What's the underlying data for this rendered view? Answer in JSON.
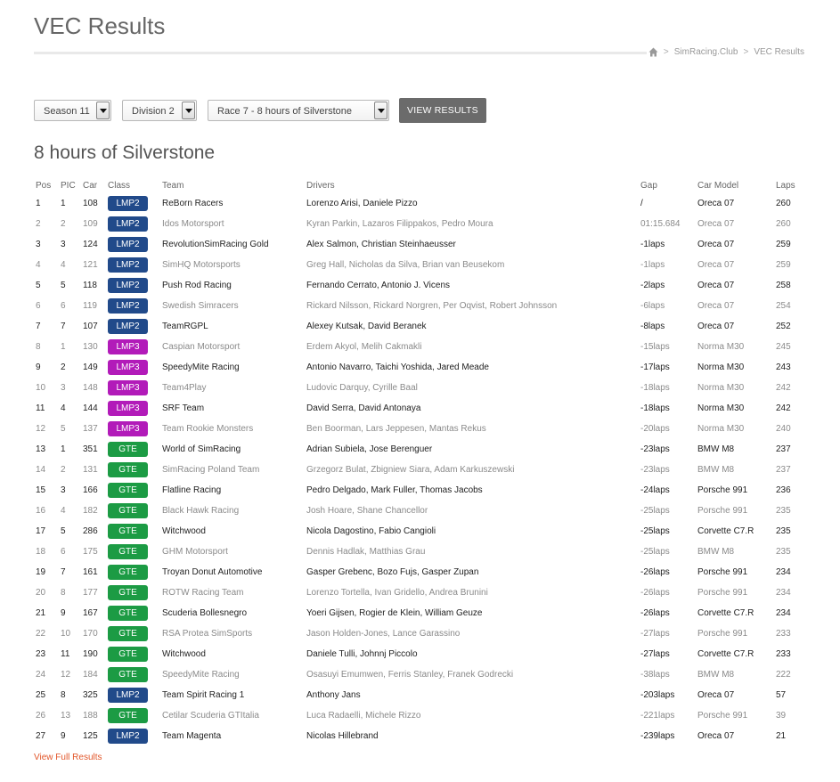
{
  "header": {
    "title": "VEC Results"
  },
  "breadcrumb": {
    "sep": ">",
    "items": [
      "SimRacing.Club",
      "VEC Results"
    ]
  },
  "filters": {
    "season": "Season 11",
    "division": "Division 2",
    "race": "Race 7 - 8 hours of Silverstone",
    "button": "VIEW RESULTS"
  },
  "race_title": "8 hours of Silverstone",
  "columns": [
    "Pos",
    "PIC",
    "Car",
    "Class",
    "Team",
    "Drivers",
    "Gap",
    "Car Model",
    "Laps"
  ],
  "colors": {
    "lmp2": "#214a8a",
    "lmp3": "#b21bb9",
    "gte": "#1c9b44",
    "link": "#e2562a"
  },
  "rows": [
    {
      "pos": "1",
      "pic": "1",
      "car": "108",
      "cls": "LMP2",
      "team": "ReBorn Racers",
      "drivers": "Lorenzo Arisi, Daniele Pizzo",
      "gap": "/",
      "model": "Oreca 07",
      "laps": "260"
    },
    {
      "pos": "2",
      "pic": "2",
      "car": "109",
      "cls": "LMP2",
      "team": "Idos Motorsport",
      "drivers": "Kyran Parkin, Lazaros Filippakos, Pedro Moura",
      "gap": "01:15.684",
      "model": "Oreca 07",
      "laps": "260"
    },
    {
      "pos": "3",
      "pic": "3",
      "car": "124",
      "cls": "LMP2",
      "team": "RevolutionSimRacing Gold",
      "drivers": "Alex Salmon, Christian Steinhaeusser",
      "gap": "-1laps",
      "model": "Oreca 07",
      "laps": "259"
    },
    {
      "pos": "4",
      "pic": "4",
      "car": "121",
      "cls": "LMP2",
      "team": "SimHQ Motorsports",
      "drivers": "Greg Hall, Nicholas da Silva, Brian van Beusekom",
      "gap": "-1laps",
      "model": "Oreca 07",
      "laps": "259"
    },
    {
      "pos": "5",
      "pic": "5",
      "car": "118",
      "cls": "LMP2",
      "team": "Push Rod Racing",
      "drivers": "Fernando Cerrato, Antonio J. Vicens",
      "gap": "-2laps",
      "model": "Oreca 07",
      "laps": "258"
    },
    {
      "pos": "6",
      "pic": "6",
      "car": "119",
      "cls": "LMP2",
      "team": "Swedish Simracers",
      "drivers": "Rickard Nilsson, Rickard Norgren, Per Oqvist, Robert Johnsson",
      "gap": "-6laps",
      "model": "Oreca 07",
      "laps": "254"
    },
    {
      "pos": "7",
      "pic": "7",
      "car": "107",
      "cls": "LMP2",
      "team": "TeamRGPL",
      "drivers": "Alexey Kutsak, David Beranek",
      "gap": "-8laps",
      "model": "Oreca 07",
      "laps": "252"
    },
    {
      "pos": "8",
      "pic": "1",
      "car": "130",
      "cls": "LMP3",
      "team": "Caspian Motorsport",
      "drivers": "Erdem Akyol, Melih Cakmakli",
      "gap": "-15laps",
      "model": "Norma M30",
      "laps": "245"
    },
    {
      "pos": "9",
      "pic": "2",
      "car": "149",
      "cls": "LMP3",
      "team": "SpeedyMite Racing",
      "drivers": "Antonio Navarro, Taichi Yoshida, Jared Meade",
      "gap": "-17laps",
      "model": "Norma M30",
      "laps": "243"
    },
    {
      "pos": "10",
      "pic": "3",
      "car": "148",
      "cls": "LMP3",
      "team": "Team4Play",
      "drivers": "Ludovic Darquy, Cyrille Baal",
      "gap": "-18laps",
      "model": "Norma M30",
      "laps": "242"
    },
    {
      "pos": "11",
      "pic": "4",
      "car": "144",
      "cls": "LMP3",
      "team": "SRF Team",
      "drivers": "David Serra, David Antonaya",
      "gap": "-18laps",
      "model": "Norma M30",
      "laps": "242"
    },
    {
      "pos": "12",
      "pic": "5",
      "car": "137",
      "cls": "LMP3",
      "team": "Team Rookie Monsters",
      "drivers": "Ben Boorman, Lars Jeppesen, Mantas Rekus",
      "gap": "-20laps",
      "model": "Norma M30",
      "laps": "240"
    },
    {
      "pos": "13",
      "pic": "1",
      "car": "351",
      "cls": "GTE",
      "team": "World of SimRacing",
      "drivers": "Adrian Subiela, Jose Berenguer",
      "gap": "-23laps",
      "model": "BMW M8",
      "laps": "237"
    },
    {
      "pos": "14",
      "pic": "2",
      "car": "131",
      "cls": "GTE",
      "team": "SimRacing Poland Team",
      "drivers": "Grzegorz Bulat, Zbigniew Siara, Adam Karkuszewski",
      "gap": "-23laps",
      "model": "BMW M8",
      "laps": "237"
    },
    {
      "pos": "15",
      "pic": "3",
      "car": "166",
      "cls": "GTE",
      "team": "Flatline Racing",
      "drivers": "Pedro Delgado, Mark Fuller, Thomas Jacobs",
      "gap": "-24laps",
      "model": "Porsche 991",
      "laps": "236"
    },
    {
      "pos": "16",
      "pic": "4",
      "car": "182",
      "cls": "GTE",
      "team": "Black Hawk Racing",
      "drivers": "Josh Hoare, Shane Chancellor",
      "gap": "-25laps",
      "model": "Porsche 991",
      "laps": "235"
    },
    {
      "pos": "17",
      "pic": "5",
      "car": "286",
      "cls": "GTE",
      "team": "Witchwood",
      "drivers": "Nicola Dagostino, Fabio Cangioli",
      "gap": "-25laps",
      "model": "Corvette C7.R",
      "laps": "235"
    },
    {
      "pos": "18",
      "pic": "6",
      "car": "175",
      "cls": "GTE",
      "team": "GHM Motorsport",
      "drivers": "Dennis Hadlak, Matthias Grau",
      "gap": "-25laps",
      "model": "BMW M8",
      "laps": "235"
    },
    {
      "pos": "19",
      "pic": "7",
      "car": "161",
      "cls": "GTE",
      "team": "Troyan Donut Automotive",
      "drivers": "Gasper Grebenc, Bozo Fujs, Gasper Zupan",
      "gap": "-26laps",
      "model": "Porsche 991",
      "laps": "234"
    },
    {
      "pos": "20",
      "pic": "8",
      "car": "177",
      "cls": "GTE",
      "team": "ROTW Racing Team",
      "drivers": "Lorenzo Tortella, Ivan Gridello, Andrea Brunini",
      "gap": "-26laps",
      "model": "Porsche 991",
      "laps": "234"
    },
    {
      "pos": "21",
      "pic": "9",
      "car": "167",
      "cls": "GTE",
      "team": "Scuderia Bollesnegro",
      "drivers": "Yoeri Gijsen, Rogier de Klein, William Geuze",
      "gap": "-26laps",
      "model": "Corvette C7.R",
      "laps": "234"
    },
    {
      "pos": "22",
      "pic": "10",
      "car": "170",
      "cls": "GTE",
      "team": "RSA Protea SimSports",
      "drivers": "Jason Holden-Jones, Lance Garassino",
      "gap": "-27laps",
      "model": "Porsche 991",
      "laps": "233"
    },
    {
      "pos": "23",
      "pic": "11",
      "car": "190",
      "cls": "GTE",
      "team": "Witchwood",
      "drivers": "Daniele Tulli, Johnnj Piccolo",
      "gap": "-27laps",
      "model": "Corvette C7.R",
      "laps": "233"
    },
    {
      "pos": "24",
      "pic": "12",
      "car": "184",
      "cls": "GTE",
      "team": "SpeedyMite Racing",
      "drivers": "Osasuyi Emumwen, Ferris Stanley, Franek Godrecki",
      "gap": "-38laps",
      "model": "BMW M8",
      "laps": "222"
    },
    {
      "pos": "25",
      "pic": "8",
      "car": "325",
      "cls": "LMP2",
      "team": "Team Spirit Racing 1",
      "drivers": "Anthony Jans",
      "gap": "-203laps",
      "model": "Oreca 07",
      "laps": "57"
    },
    {
      "pos": "26",
      "pic": "13",
      "car": "188",
      "cls": "GTE",
      "team": "Cetilar Scuderia GTItalia",
      "drivers": "Luca Radaelli, Michele Rizzo",
      "gap": "-221laps",
      "model": "Porsche 991",
      "laps": "39"
    },
    {
      "pos": "27",
      "pic": "9",
      "car": "125",
      "cls": "LMP2",
      "team": "Team Magenta",
      "drivers": "Nicolas Hillebrand",
      "gap": "-239laps",
      "model": "Oreca 07",
      "laps": "21"
    }
  ],
  "footer_link": "View Full Results"
}
